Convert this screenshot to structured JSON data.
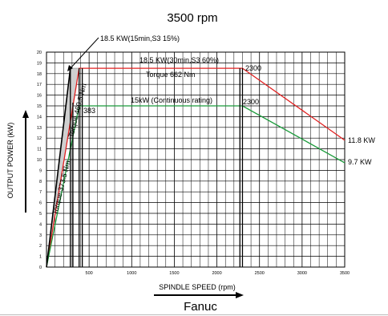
{
  "chart_data": {
    "type": "line",
    "title": "3500 rpm",
    "xlabel": "SPINDLE SPEED (rpm)",
    "ylabel": "OUTPUT POWER  (kW)",
    "caption": "Fanuc",
    "xlim": [
      0,
      3500
    ],
    "ylim": [
      0,
      20
    ],
    "x_ticks": [
      500,
      1000,
      1500,
      2000,
      2500,
      3000,
      3500
    ],
    "y_ticks": [
      0,
      1,
      2,
      3,
      4,
      5,
      6,
      7,
      8,
      9,
      10,
      11,
      12,
      13,
      14,
      15,
      16,
      17,
      18,
      19,
      20
    ],
    "grid": true,
    "series": [
      {
        "name": "18.5 KW(30min,S3 60%)",
        "color": "#e02020",
        "x": [
          0,
          383,
          2300,
          3500
        ],
        "y": [
          0,
          18.5,
          18.5,
          11.8
        ]
      },
      {
        "name": "15kW (Continuous rating)",
        "color": "#1a9a3a",
        "x": [
          0,
          383,
          2300,
          3500
        ],
        "y": [
          0,
          15,
          15,
          9.7
        ]
      },
      {
        "name": "18.5 KW(15min,S3 15%)",
        "color": "#000000",
        "x": [
          0,
          280
        ],
        "y": [
          0,
          18.5
        ]
      }
    ],
    "vertical_marks": [
      {
        "x": 280,
        "y": 18.5
      },
      {
        "x": 310,
        "y": 15.3
      },
      {
        "x": 383,
        "y": 18.5
      },
      {
        "x": 420,
        "y": 18.5
      },
      {
        "x": 2270,
        "y": 18.5
      },
      {
        "x": 2300,
        "y": 18.5
      }
    ],
    "shaded_band": {
      "color": "#cfcfcf",
      "outer": [
        [
          0,
          0
        ],
        [
          280,
          18.5
        ],
        [
          383,
          18.5
        ],
        [
          0,
          0
        ]
      ]
    },
    "annotations": {
      "s3_15": "18.5 KW(15min,S3 15%)",
      "s3_60": "18.5 KW(30min,S3 60%)",
      "torque_662": "Torque  662  Nm",
      "continuous": "15kW (Continuous rating)",
      "torque_460": "Torque  460.5  Nm",
      "torque_373": "Torque  373.5  Nm",
      "rpm_383": "383",
      "rpm_2300_top": "2300",
      "rpm_2300_mid": "2300",
      "end_red": "11.8 KW",
      "end_green": "9.7 KW"
    }
  }
}
